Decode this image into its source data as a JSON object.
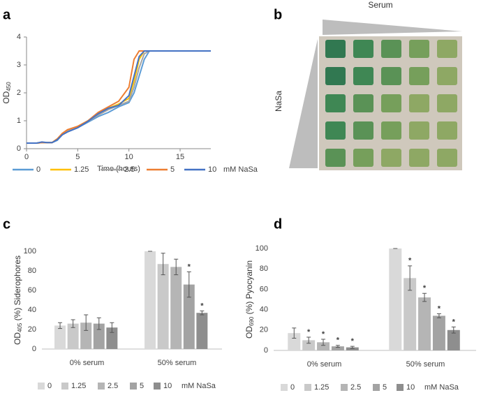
{
  "chart_data": [
    {
      "type": "line",
      "panel_label": "a",
      "x_label": "Time (hours)",
      "y_label": "OD",
      "y_label_sub": "450",
      "x": [
        0,
        1,
        1.5,
        2,
        2.5,
        3,
        3.5,
        4,
        5,
        6,
        7,
        8,
        9,
        10,
        10.5,
        11,
        11.5,
        12,
        12.5,
        13,
        18
      ],
      "xlim": [
        0,
        18
      ],
      "xticks": [
        0,
        5,
        10,
        15
      ],
      "ylim": [
        0,
        4
      ],
      "yticks": [
        0,
        1,
        2,
        3,
        4
      ],
      "legend_title": "mM NaSa",
      "series": [
        {
          "name": "0",
          "color": "#5b9bd5",
          "values": [
            0.2,
            0.2,
            0.22,
            0.22,
            0.22,
            0.3,
            0.5,
            0.6,
            0.75,
            0.95,
            1.15,
            1.3,
            1.5,
            1.65,
            2.0,
            2.6,
            3.2,
            3.5,
            3.5,
            3.5,
            3.5
          ]
        },
        {
          "name": "1.25",
          "color": "#ffc000",
          "values": [
            0.2,
            0.2,
            0.22,
            0.22,
            0.22,
            0.35,
            0.55,
            0.65,
            0.8,
            1.0,
            1.25,
            1.45,
            1.6,
            1.8,
            2.4,
            3.2,
            3.5,
            3.5,
            3.5,
            3.5,
            3.5
          ]
        },
        {
          "name": "2.5",
          "color": "#a5a5a5",
          "values": [
            0.2,
            0.2,
            0.22,
            0.22,
            0.22,
            0.33,
            0.52,
            0.62,
            0.78,
            0.98,
            1.2,
            1.4,
            1.55,
            1.7,
            2.2,
            2.9,
            3.4,
            3.5,
            3.5,
            3.5,
            3.5
          ]
        },
        {
          "name": "5",
          "color": "#ed7d31",
          "values": [
            0.2,
            0.2,
            0.22,
            0.22,
            0.22,
            0.35,
            0.55,
            0.68,
            0.8,
            1.0,
            1.3,
            1.5,
            1.7,
            2.2,
            3.2,
            3.5,
            3.5,
            3.5,
            3.5,
            3.5,
            3.5
          ]
        },
        {
          "name": "10",
          "color": "#4472c4",
          "values": [
            0.2,
            0.2,
            0.24,
            0.22,
            0.22,
            0.32,
            0.5,
            0.6,
            0.75,
            0.98,
            1.25,
            1.45,
            1.55,
            1.9,
            2.6,
            3.3,
            3.5,
            3.5,
            3.5,
            3.5,
            3.5
          ]
        }
      ]
    },
    {
      "type": "bar",
      "panel_label": "c",
      "y_label": "OD",
      "y_label_sub": "405",
      "y_label_rest": " (%) Siderophores",
      "categories": [
        "0% serum",
        "50% serum"
      ],
      "ylim": [
        0,
        100
      ],
      "yticks": [
        0,
        20,
        40,
        60,
        80,
        100
      ],
      "legend_title": "mM NaSa",
      "series": [
        {
          "name": "0",
          "color": "#d9d9d9",
          "values": [
            24,
            100
          ],
          "errors": [
            3,
            0
          ],
          "significance": [
            null,
            null
          ]
        },
        {
          "name": "1.25",
          "color": "#c9c9c9",
          "values": [
            26,
            87
          ],
          "errors": [
            4,
            11
          ],
          "significance": [
            null,
            null
          ]
        },
        {
          "name": "2.5",
          "color": "#b5b5b5",
          "values": [
            27,
            84
          ],
          "errors": [
            8,
            8
          ],
          "significance": [
            null,
            null
          ]
        },
        {
          "name": "5",
          "color": "#a3a3a3",
          "values": [
            26,
            66
          ],
          "errors": [
            6,
            13
          ],
          "significance": [
            null,
            "*"
          ]
        },
        {
          "name": "10",
          "color": "#8e8e8e",
          "values": [
            22,
            37
          ],
          "errors": [
            5,
            2
          ],
          "significance": [
            null,
            "*"
          ]
        }
      ]
    },
    {
      "type": "bar",
      "panel_label": "d",
      "y_label": "OD",
      "y_label_sub": "690",
      "y_label_rest": " (%) Pyocyanin",
      "categories": [
        "0% serum",
        "50% serum"
      ],
      "ylim": [
        0,
        100
      ],
      "yticks": [
        0,
        20,
        40,
        60,
        80,
        100
      ],
      "legend_title": "mM NaSa",
      "series": [
        {
          "name": "0",
          "color": "#d9d9d9",
          "values": [
            17,
            100
          ],
          "errors": [
            5,
            0
          ],
          "significance": [
            null,
            null
          ]
        },
        {
          "name": "1.25",
          "color": "#c9c9c9",
          "values": [
            10,
            71
          ],
          "errors": [
            3,
            12
          ],
          "significance": [
            "*",
            "*"
          ]
        },
        {
          "name": "2.5",
          "color": "#b5b5b5",
          "values": [
            8,
            52
          ],
          "errors": [
            3,
            4
          ],
          "significance": [
            "*",
            "*"
          ]
        },
        {
          "name": "5",
          "color": "#a3a3a3",
          "values": [
            4,
            34
          ],
          "errors": [
            1,
            2
          ],
          "significance": [
            "*",
            "*"
          ]
        },
        {
          "name": "10",
          "color": "#8e8e8e",
          "values": [
            3,
            20
          ],
          "errors": [
            1,
            3
          ],
          "significance": [
            "*",
            "*"
          ]
        }
      ]
    }
  ],
  "image_panel": {
    "panel_label": "b",
    "top_label": "Serum",
    "side_label": "NaSa"
  }
}
